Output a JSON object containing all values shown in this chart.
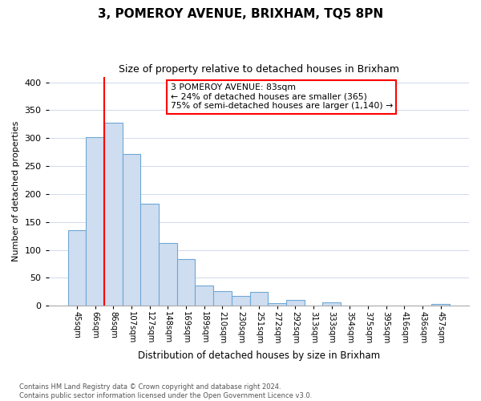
{
  "title": "3, POMEROY AVENUE, BRIXHAM, TQ5 8PN",
  "subtitle": "Size of property relative to detached houses in Brixham",
  "xlabel": "Distribution of detached houses by size in Brixham",
  "ylabel": "Number of detached properties",
  "bar_labels": [
    "45sqm",
    "66sqm",
    "86sqm",
    "107sqm",
    "127sqm",
    "148sqm",
    "169sqm",
    "189sqm",
    "210sqm",
    "230sqm",
    "251sqm",
    "272sqm",
    "292sqm",
    "313sqm",
    "333sqm",
    "354sqm",
    "375sqm",
    "395sqm",
    "416sqm",
    "436sqm",
    "457sqm"
  ],
  "bar_values": [
    135,
    302,
    327,
    271,
    183,
    112,
    84,
    37,
    27,
    17,
    25,
    5,
    11,
    1,
    6,
    1,
    1,
    0,
    1,
    0,
    3
  ],
  "bar_color": "#cfddf0",
  "bar_edge_color": "#6fa8d6",
  "property_line_index": 2,
  "annotation_text_line1": "3 POMEROY AVENUE: 83sqm",
  "annotation_text_line2": "← 24% of detached houses are smaller (365)",
  "annotation_text_line3": "75% of semi-detached houses are larger (1,140) →",
  "footnote_line1": "Contains HM Land Registry data © Crown copyright and database right 2024.",
  "footnote_line2": "Contains public sector information licensed under the Open Government Licence v3.0.",
  "ylim": [
    0,
    410
  ],
  "yticks": [
    0,
    50,
    100,
    150,
    200,
    250,
    300,
    350,
    400
  ],
  "figsize": [
    6.0,
    5.0
  ],
  "dpi": 100
}
